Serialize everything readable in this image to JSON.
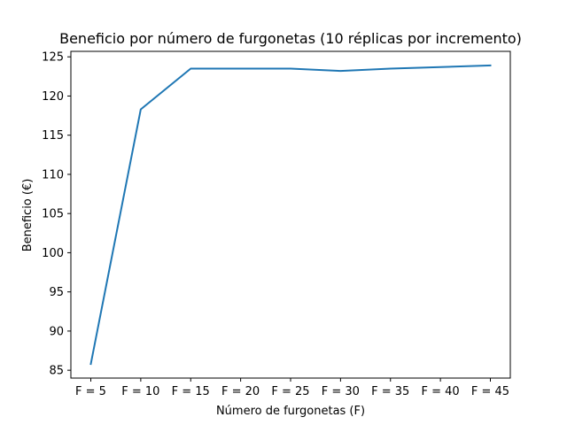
{
  "chart_data": {
    "type": "line",
    "title": "Beneficio por número de furgonetas (10 réplicas por incremento)",
    "xlabel": "Número de furgonetas (F)",
    "ylabel": "Beneficio (€)",
    "categories": [
      "F = 5",
      "F = 10",
      "F = 15",
      "F = 20",
      "F = 25",
      "F = 30",
      "F = 35",
      "F = 40",
      "F = 45"
    ],
    "series": [
      {
        "values": [
          85.8,
          118.3,
          123.5,
          123.5,
          123.5,
          123.2,
          123.5,
          123.7,
          123.9
        ],
        "color": "#1f77b4"
      }
    ],
    "ylim": [
      84,
      125.7
    ],
    "yticks": [
      85,
      90,
      95,
      100,
      105,
      110,
      115,
      120,
      125
    ],
    "grid": false,
    "legend": "none"
  }
}
